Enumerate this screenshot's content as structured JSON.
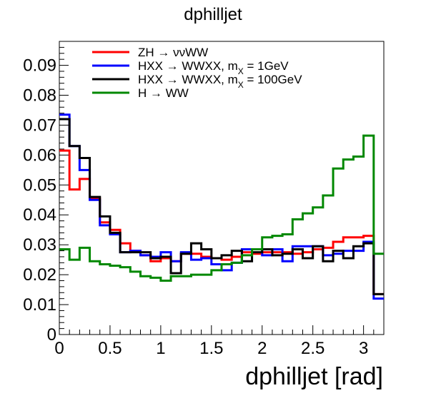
{
  "chart_data": {
    "type": "line",
    "style": "step-histogram",
    "title": "dphilljet",
    "xlabel": "dphilljet [rad]",
    "ylabel": "",
    "xlim": [
      0,
      3.2
    ],
    "ylim": [
      0,
      0.098
    ],
    "xticks": [
      0,
      0.5,
      1,
      1.5,
      2,
      2.5,
      3
    ],
    "xtick_labels": [
      "0",
      "0.5",
      "1",
      "1.5",
      "2",
      "2.5",
      "3"
    ],
    "yticks": [
      0,
      0.01,
      0.02,
      0.03,
      0.04,
      0.05,
      0.06,
      0.07,
      0.08,
      0.09
    ],
    "ytick_labels": [
      "0",
      "0.01",
      "0.02",
      "0.03",
      "0.04",
      "0.05",
      "0.06",
      "0.07",
      "0.08",
      "0.09"
    ],
    "grid": false,
    "legend_position": "top",
    "bin_width": 0.1,
    "bin_edges": [
      0,
      0.1,
      0.2,
      0.3,
      0.4,
      0.5,
      0.6,
      0.7,
      0.8,
      0.9,
      1.0,
      1.1,
      1.2,
      1.3,
      1.4,
      1.5,
      1.6,
      1.7,
      1.8,
      1.9,
      2.0,
      2.1,
      2.2,
      2.3,
      2.4,
      2.5,
      2.6,
      2.7,
      2.8,
      2.9,
      3.0,
      3.1,
      3.2
    ],
    "series": [
      {
        "name": "ZH → ννWW",
        "legend_main": "ZH → ννWW",
        "legend_sub": "",
        "legend_tail": "",
        "color": "#ff0000",
        "values": [
          0.0615,
          0.0485,
          0.052,
          0.0455,
          0.0375,
          0.035,
          0.0305,
          0.028,
          0.0265,
          0.0245,
          0.0255,
          0.0245,
          0.027,
          0.027,
          0.026,
          0.0255,
          0.025,
          0.026,
          0.0275,
          0.027,
          0.0275,
          0.0275,
          0.0275,
          0.027,
          0.0275,
          0.0285,
          0.029,
          0.031,
          0.0325,
          0.0325,
          0.033,
          0.0135
        ]
      },
      {
        "name": "HXX → WWXX, mX = 1GeV",
        "legend_main": "HXX → WWXX, m",
        "legend_sub": "X",
        "legend_tail": " = 1GeV",
        "color": "#0000ff",
        "values": [
          0.0735,
          0.063,
          0.055,
          0.045,
          0.0365,
          0.0335,
          0.0275,
          0.028,
          0.0265,
          0.026,
          0.0275,
          0.0245,
          0.0275,
          0.025,
          0.0255,
          0.0235,
          0.0215,
          0.024,
          0.0285,
          0.0285,
          0.0265,
          0.0285,
          0.0245,
          0.0295,
          0.0295,
          0.0295,
          0.0265,
          0.027,
          0.028,
          0.028,
          0.031,
          0.012
        ]
      },
      {
        "name": "HXX → WWXX, mX = 100GeV",
        "legend_main": "HXX → WWXX, m",
        "legend_sub": "X",
        "legend_tail": " = 100GeV",
        "color": "#000000",
        "values": [
          0.072,
          0.063,
          0.059,
          0.046,
          0.0395,
          0.034,
          0.0275,
          0.0275,
          0.0275,
          0.0255,
          0.026,
          0.0205,
          0.027,
          0.0305,
          0.0285,
          0.0255,
          0.0265,
          0.028,
          0.0245,
          0.0275,
          0.0285,
          0.0265,
          0.027,
          0.0285,
          0.0255,
          0.0295,
          0.0245,
          0.028,
          0.0255,
          0.0295,
          0.0305,
          0.0135
        ]
      },
      {
        "name": "H → WW",
        "legend_main": "H → WW",
        "legend_sub": "",
        "legend_tail": "",
        "color": "#008800",
        "values": [
          0.0285,
          0.025,
          0.029,
          0.0245,
          0.0235,
          0.023,
          0.0225,
          0.021,
          0.0195,
          0.019,
          0.018,
          0.0195,
          0.0195,
          0.02,
          0.02,
          0.0215,
          0.0235,
          0.024,
          0.0265,
          0.0285,
          0.0325,
          0.033,
          0.0335,
          0.0385,
          0.0405,
          0.0425,
          0.0465,
          0.0555,
          0.0585,
          0.0595,
          0.0665,
          0.027
        ]
      }
    ]
  }
}
